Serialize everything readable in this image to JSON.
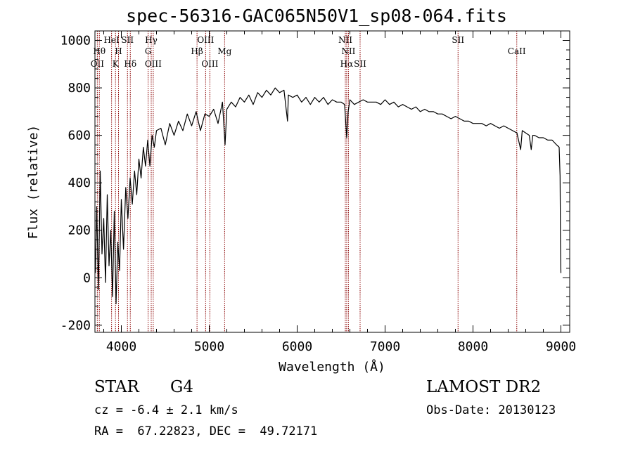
{
  "header": {
    "title": "spec-56316-GAC065N50V1_sp08-064.fits"
  },
  "info": {
    "class": "STAR",
    "subclass": "G4",
    "survey": "LAMOST DR2",
    "cz": "cz = -6.4 ± 2.1 km/s",
    "obs_date": "Obs-Date: 20130123",
    "ra_dec": "RA =  67.22823, DEC =  49.72171"
  },
  "chart_data": {
    "type": "line",
    "title": "spec-56316-GAC065N50V1_sp08-064.fits",
    "xlabel": "Wavelength (Å)",
    "ylabel": "Flux (relative)",
    "xlim": [
      3700,
      9100
    ],
    "ylim": [
      -230,
      1040
    ],
    "xticks": [
      "4000",
      "5000",
      "6000",
      "7000",
      "8000",
      "9000"
    ],
    "yticks": [
      "-200",
      "0",
      "200",
      "400",
      "600",
      "800",
      "1000"
    ],
    "grid": false,
    "line_color": "#000000",
    "marker_color": "#8b0000",
    "series": [
      {
        "x": [
          3705,
          3720,
          3740,
          3760,
          3780,
          3800,
          3820,
          3840,
          3860,
          3880,
          3900,
          3920,
          3940,
          3960,
          3980,
          4000,
          4025,
          4050,
          4075,
          4100,
          4125,
          4150,
          4175,
          4200,
          4225,
          4250,
          4275,
          4300,
          4325,
          4350,
          4375,
          4400,
          4450,
          4500,
          4550,
          4600,
          4650,
          4700,
          4750,
          4800,
          4850,
          4900,
          4950,
          5000,
          5050,
          5100,
          5150,
          5180,
          5200,
          5250,
          5300,
          5350,
          5400,
          5450,
          5500,
          5550,
          5600,
          5650,
          5700,
          5750,
          5800,
          5850,
          5890,
          5900,
          5950,
          6000,
          6050,
          6100,
          6150,
          6200,
          6250,
          6300,
          6350,
          6400,
          6450,
          6500,
          6540,
          6563,
          6580,
          6600,
          6650,
          6700,
          6750,
          6800,
          6850,
          6900,
          6950,
          7000,
          7050,
          7100,
          7150,
          7200,
          7250,
          7300,
          7350,
          7400,
          7450,
          7500,
          7550,
          7600,
          7650,
          7700,
          7750,
          7800,
          7850,
          7900,
          7950,
          8000,
          8050,
          8100,
          8150,
          8200,
          8250,
          8300,
          8350,
          8400,
          8450,
          8500,
          8542,
          8560,
          8600,
          8640,
          8662,
          8680,
          8700,
          8750,
          8800,
          8850,
          8900,
          8950,
          8980,
          8990,
          8995,
          9000
        ],
        "y": [
          20,
          300,
          -50,
          450,
          100,
          250,
          -20,
          350,
          50,
          200,
          -80,
          280,
          -110,
          150,
          30,
          330,
          120,
          380,
          250,
          420,
          310,
          450,
          350,
          500,
          420,
          550,
          470,
          580,
          470,
          600,
          550,
          620,
          630,
          560,
          650,
          600,
          660,
          620,
          690,
          640,
          700,
          620,
          690,
          680,
          710,
          650,
          740,
          560,
          710,
          740,
          720,
          760,
          740,
          770,
          730,
          780,
          760,
          790,
          770,
          800,
          780,
          790,
          660,
          770,
          760,
          770,
          740,
          760,
          730,
          760,
          740,
          760,
          730,
          750,
          740,
          740,
          730,
          590,
          700,
          750,
          730,
          740,
          750,
          740,
          740,
          740,
          730,
          750,
          730,
          740,
          720,
          730,
          720,
          710,
          720,
          700,
          710,
          700,
          700,
          690,
          690,
          680,
          670,
          680,
          670,
          660,
          660,
          650,
          650,
          650,
          640,
          650,
          640,
          630,
          640,
          630,
          620,
          610,
          540,
          620,
          610,
          600,
          540,
          600,
          600,
          590,
          590,
          580,
          580,
          560,
          550,
          430,
          150,
          20
        ]
      }
    ],
    "line_markers": [
      {
        "wave": 3727,
        "label": "OII",
        "row": 2
      },
      {
        "wave": 3750,
        "label": "Hθ",
        "row": 1
      },
      {
        "wave": 3889,
        "label": "HeI",
        "row": 0
      },
      {
        "wave": 3934,
        "label": "K",
        "row": 2
      },
      {
        "wave": 3968,
        "label": "H",
        "row": 1
      },
      {
        "wave": 4070,
        "label": "SII",
        "row": 0
      },
      {
        "wave": 4102,
        "label": "Hδ",
        "row": 2
      },
      {
        "wave": 4305,
        "label": "G",
        "row": 1
      },
      {
        "wave": 4340,
        "label": "Hγ",
        "row": 0
      },
      {
        "wave": 4363,
        "label": "OIII",
        "row": 2
      },
      {
        "wave": 4861,
        "label": "Hβ",
        "row": 1
      },
      {
        "wave": 4959,
        "label": "OIII",
        "row": 0
      },
      {
        "wave": 5007,
        "label": "OIII",
        "row": 2
      },
      {
        "wave": 5175,
        "label": "Mg",
        "row": 1
      },
      {
        "wave": 6548,
        "label": "NII",
        "row": 0
      },
      {
        "wave": 6563,
        "label": "Hα",
        "row": 2
      },
      {
        "wave": 6583,
        "label": "NII",
        "row": 1
      },
      {
        "wave": 6716,
        "label": "SII",
        "row": 2
      },
      {
        "wave": 7830,
        "label": "SII",
        "row": 0
      },
      {
        "wave": 8498,
        "label": "CaII",
        "row": 1
      }
    ]
  }
}
